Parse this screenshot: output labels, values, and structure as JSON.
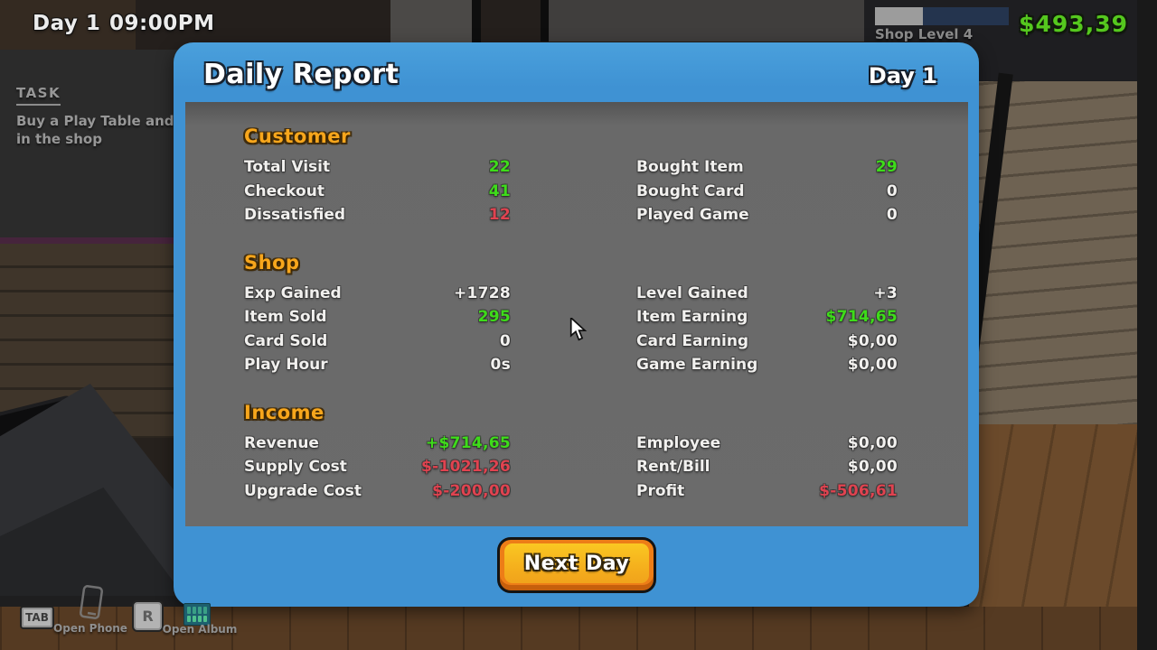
{
  "hud": {
    "day": "Day 1",
    "time": "09:00PM",
    "money": "$493,39",
    "shop_level": "Shop Level 4",
    "level_progress": "36%"
  },
  "task": {
    "title": "TASK",
    "line1": "Buy a Play Table and",
    "line2": "in the shop"
  },
  "dialog": {
    "title": "Daily Report",
    "day": "Day 1",
    "next_day_label": "Next Day",
    "sections": [
      {
        "title": "Customer",
        "left": [
          {
            "label": "Total Visit",
            "value": "22",
            "color": "green"
          },
          {
            "label": "Checkout",
            "value": "41",
            "color": "green"
          },
          {
            "label": "Dissatisfied",
            "value": "12",
            "color": "red"
          }
        ],
        "right": [
          {
            "label": "Bought Item",
            "value": "29",
            "color": "green"
          },
          {
            "label": "Bought Card",
            "value": "0",
            "color": "white"
          },
          {
            "label": "Played Game",
            "value": "0",
            "color": "white"
          }
        ]
      },
      {
        "title": "Shop",
        "left": [
          {
            "label": "Exp Gained",
            "value": "+1728",
            "color": "white"
          },
          {
            "label": "Item Sold",
            "value": "295",
            "color": "green"
          },
          {
            "label": "Card Sold",
            "value": "0",
            "color": "white"
          },
          {
            "label": "Play Hour",
            "value": "0s",
            "color": "white"
          }
        ],
        "right": [
          {
            "label": "Level Gained",
            "value": "+3",
            "color": "white"
          },
          {
            "label": "Item Earning",
            "value": "$714,65",
            "color": "green"
          },
          {
            "label": "Card Earning",
            "value": "$0,00",
            "color": "white"
          },
          {
            "label": "Game Earning",
            "value": "$0,00",
            "color": "white"
          }
        ]
      },
      {
        "title": "Income",
        "left": [
          {
            "label": "Revenue",
            "value": "+$714,65",
            "color": "green"
          },
          {
            "label": "Supply Cost",
            "value": "$-1021,26",
            "color": "red"
          },
          {
            "label": "Upgrade Cost",
            "value": "$-200,00",
            "color": "red"
          }
        ],
        "right": [
          {
            "label": "Employee",
            "value": "$0,00",
            "color": "white"
          },
          {
            "label": "Rent/Bill",
            "value": "$0,00",
            "color": "white"
          },
          {
            "label": "Profit",
            "value": "$-506,61",
            "color": "red"
          }
        ]
      }
    ]
  },
  "hotkeys": {
    "tab_key": "TAB",
    "open_phone": "Open Phone",
    "r_key": "R",
    "open_album": "Open Album"
  },
  "colors": {
    "dialog_blue": "#3f92d3",
    "panel_gray": "#6b6b6b",
    "section_orange": "#f7a61c",
    "value_green": "#3edc1a",
    "value_red": "#e04350",
    "money_green": "#55c81e",
    "button_orange": "#ed7d17",
    "button_yellow": "#f4ac1c"
  }
}
